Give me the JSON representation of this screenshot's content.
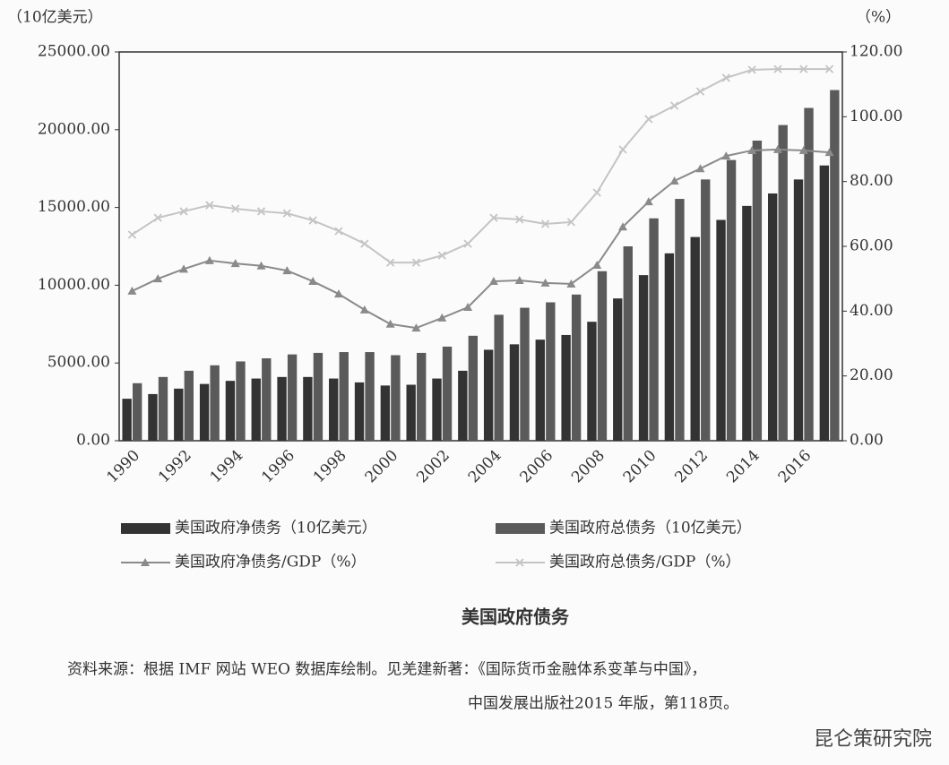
{
  "chart_data": {
    "type": "bar_line",
    "title": "美国政府债务",
    "y_label": "（10亿美元）",
    "y2_label": "（%）",
    "source": [
      "资料来源：根据 IMF 网站 WEO 数据库绘制。见羌建新著：《国际货币金融体系变革与中国》，",
      "中国发展出版社2015 年版，第118页。"
    ],
    "watermark": "昆仑策研究院",
    "categories": [
      "1990",
      null,
      "1992",
      null,
      "1994",
      null,
      "1996",
      null,
      "1998",
      null,
      "2000",
      null,
      "2002",
      null,
      "2004",
      null,
      "2006",
      null,
      "2008",
      null,
      "2010",
      null,
      "2012",
      null,
      "2014",
      null,
      "2016",
      null
    ],
    "series": [
      {
        "name": "美国政府净债务（10亿美元）",
        "color": "#333333",
        "kind": "bar",
        "values": [
          2700,
          3000,
          3350,
          3650,
          3850,
          4000,
          4100,
          4100,
          4000,
          3750,
          3550,
          3600,
          4000,
          4500,
          5850,
          6200,
          6500,
          6800,
          7650,
          9150,
          10650,
          12050,
          13100,
          14200,
          15100,
          15900,
          16800,
          17700
        ]
      },
      {
        "name": "美国政府总债务（10亿美元）",
        "color": "#5a5a5a",
        "kind": "bar",
        "values": [
          3700,
          4100,
          4500,
          4850,
          5100,
          5300,
          5550,
          5650,
          5700,
          5700,
          5500,
          5650,
          6050,
          6750,
          8100,
          8550,
          8900,
          9400,
          10900,
          12500,
          14300,
          15550,
          16800,
          18050,
          19300,
          20300,
          21400,
          22550
        ]
      },
      {
        "name": "美国政府净债务/GDP（%）",
        "color": "#8a8a8a",
        "kind": "line",
        "marker": "triangle",
        "axis": "y2",
        "values": [
          46.2,
          50,
          53,
          55.6,
          54.7,
          54,
          52.5,
          49.2,
          45.3,
          40.4,
          36,
          34.8,
          37.9,
          41.2,
          49.2,
          49.5,
          48.7,
          48.4,
          54.2,
          66,
          73.8,
          80.2,
          84,
          87.9,
          89.6,
          89.9,
          89.6,
          89
        ]
      },
      {
        "name": "美国政府总债务/GDP（%）",
        "color": "#c4c4c4",
        "kind": "line",
        "marker": "cross",
        "axis": "y2",
        "values": [
          63.6,
          68.8,
          70.8,
          72.7,
          71.6,
          70.8,
          70.2,
          68,
          64.7,
          60.8,
          55,
          55,
          57.2,
          60.8,
          68.8,
          68.3,
          66.9,
          67.5,
          76.6,
          89.9,
          99.3,
          103.4,
          107.8,
          112,
          114.5,
          114.7,
          114.7,
          114.7
        ]
      }
    ],
    "ylim": [
      0,
      25000
    ],
    "yticks": [
      {
        "value": 0,
        "label": "0.00"
      },
      {
        "value": 5000,
        "label": "5000.00"
      },
      {
        "value": 10000,
        "label": "10000.00"
      },
      {
        "value": 15000,
        "label": "15000.00"
      },
      {
        "value": 20000,
        "label": "20000.00"
      },
      {
        "value": 25000,
        "label": "25000.00"
      }
    ],
    "y2lim": [
      0,
      120
    ],
    "y2ticks": [
      {
        "value": 0,
        "label": "0.00"
      },
      {
        "value": 20,
        "label": "20.00"
      },
      {
        "value": 40,
        "label": "40.00"
      },
      {
        "value": 60,
        "label": "60.00"
      },
      {
        "value": 80,
        "label": "80.00"
      },
      {
        "value": 100,
        "label": "100.00"
      },
      {
        "value": 120,
        "label": "120.00"
      }
    ]
  }
}
